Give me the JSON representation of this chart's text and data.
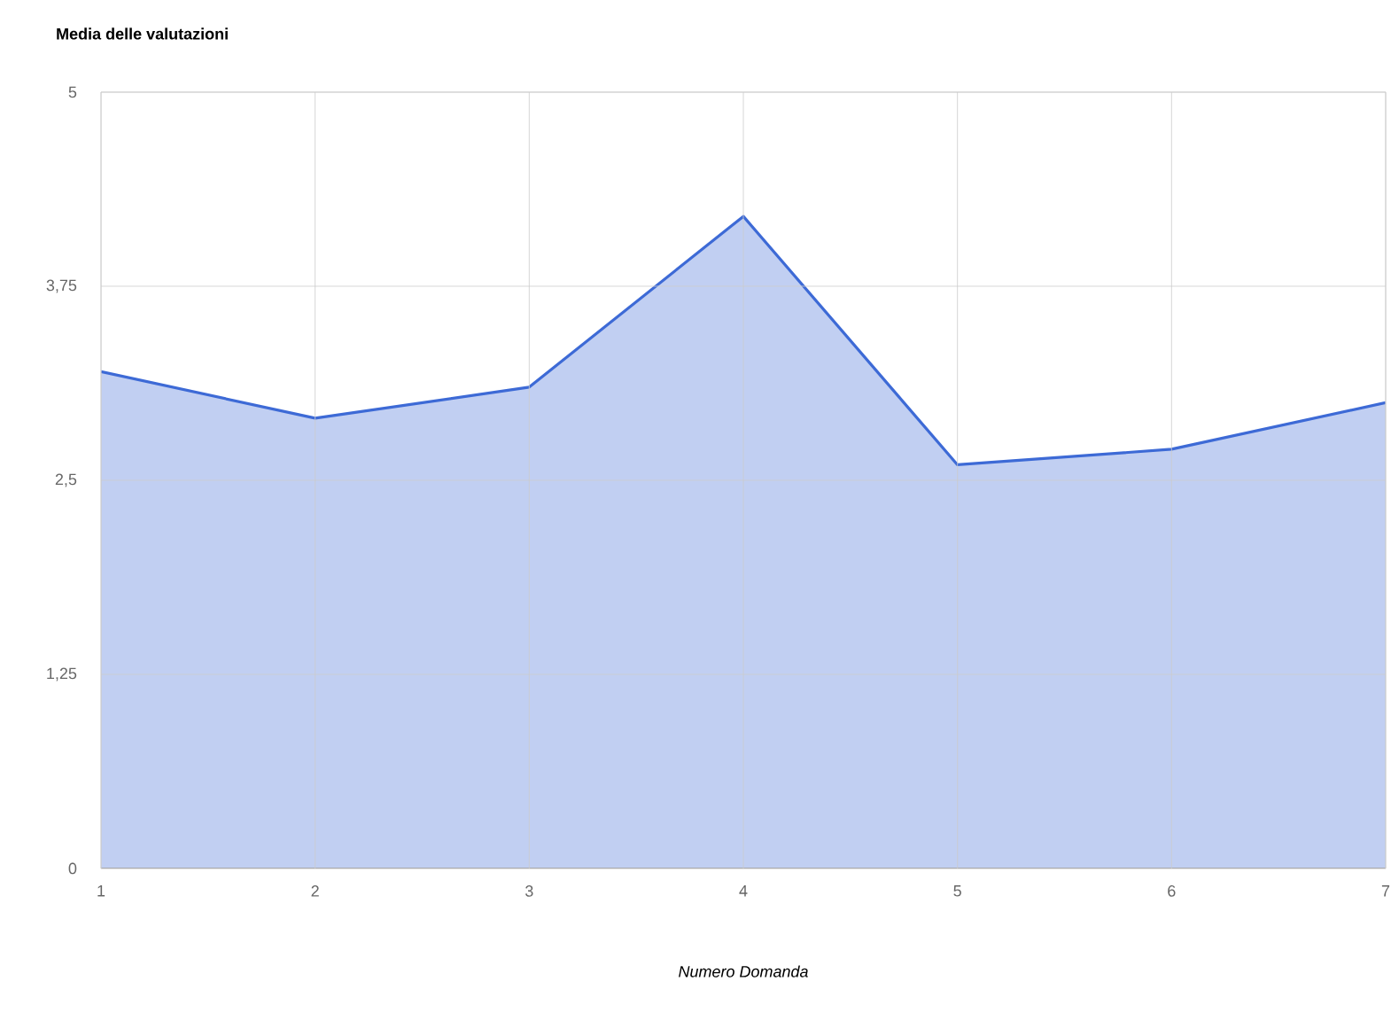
{
  "chart_data": {
    "type": "area",
    "title": "Media delle valutazioni",
    "xlabel": "Numero Domanda",
    "x": [
      1,
      2,
      3,
      4,
      5,
      6,
      7
    ],
    "series": [
      {
        "color": "#3d6ad6",
        "values": [
          3.2,
          2.9,
          3.1,
          4.2,
          2.6,
          2.7,
          3.0
        ]
      }
    ],
    "xlim": [
      1,
      7
    ],
    "xticks": [
      1,
      2,
      3,
      4,
      5,
      6,
      7
    ],
    "ylim": [
      0,
      5
    ],
    "yticks": [
      0,
      {
        "value": 1.25,
        "label": "1,25"
      },
      {
        "value": 2.5,
        "label": "2,5"
      },
      {
        "value": 3.75,
        "label": "3,75"
      },
      5
    ],
    "grid": true
  }
}
